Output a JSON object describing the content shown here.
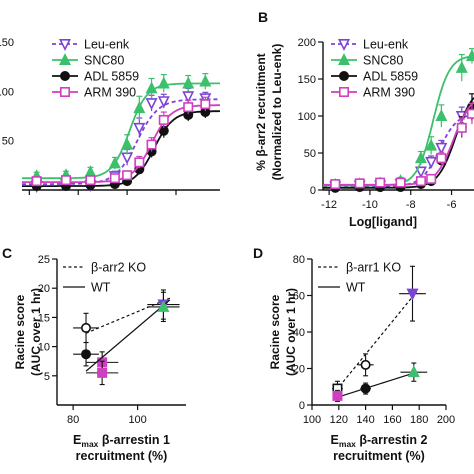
{
  "colors": {
    "leu_enk": "#7b44d6",
    "snc80": "#3cc06b",
    "adl5859": "#111111",
    "arm390": "#cf3fbf",
    "axis": "#111111"
  },
  "chart_data": [
    {
      "id": "A",
      "type": "line",
      "panel_letter": "",
      "xlabel": "",
      "ylabel": "",
      "xlim": [
        -12.3,
        -4.2
      ],
      "ylim": [
        0,
        150
      ],
      "xticks": [],
      "yticks": [
        "150",
        "100",
        "50"
      ],
      "x_minor_ticks": [
        -12,
        -10,
        -8,
        -6
      ],
      "legend": [
        "Leu-enk",
        "SNC80",
        "ADL 5859",
        "ARM 390"
      ],
      "legend_placement": "top-left",
      "series": [
        {
          "name": "Leu-enk",
          "color": "leu_enk",
          "marker": "triangle-down-open",
          "dashed": true,
          "bottom": 6,
          "top": 92,
          "ec50": -7.6,
          "hill": 1.0,
          "points": [
            [
              -11.7,
              4
            ],
            [
              -10.5,
              6
            ],
            [
              -9.5,
              5
            ],
            [
              -8.5,
              14
            ],
            [
              -8,
              33
            ],
            [
              -7.5,
              63
            ],
            [
              -7,
              88
            ],
            [
              -6.5,
              90
            ],
            [
              -5.5,
              95
            ],
            [
              -4.8,
              93
            ]
          ],
          "err": [
            3,
            3,
            3,
            5,
            8,
            10,
            8,
            7,
            8,
            6
          ]
        },
        {
          "name": "SNC80",
          "color": "snc80",
          "marker": "triangle-up",
          "dashed": false,
          "bottom": 12,
          "top": 108,
          "ec50": -7.9,
          "hill": 1.2,
          "points": [
            [
              -11.7,
              14
            ],
            [
              -10.5,
              15
            ],
            [
              -9.5,
              18
            ],
            [
              -8.5,
              27
            ],
            [
              -8,
              46
            ],
            [
              -7.5,
              83
            ],
            [
              -7,
              103
            ],
            [
              -6.5,
              108
            ],
            [
              -5.5,
              108
            ],
            [
              -4.8,
              110
            ]
          ],
          "err": [
            4,
            4,
            5,
            6,
            10,
            12,
            10,
            9,
            8,
            8
          ]
        },
        {
          "name": "ADL 5859",
          "color": "adl5859",
          "marker": "circle",
          "dashed": false,
          "bottom": 4,
          "top": 80,
          "ec50": -6.9,
          "hill": 1.1,
          "points": [
            [
              -11.7,
              4
            ],
            [
              -10.5,
              4
            ],
            [
              -9.5,
              5
            ],
            [
              -8.5,
              6
            ],
            [
              -8,
              9
            ],
            [
              -7.5,
              21
            ],
            [
              -7,
              39
            ],
            [
              -6.5,
              60
            ],
            [
              -5.5,
              76
            ],
            [
              -4.8,
              79
            ]
          ],
          "err": [
            2,
            2,
            2,
            3,
            3,
            5,
            6,
            7,
            6,
            6
          ]
        },
        {
          "name": "ARM 390",
          "color": "arm390",
          "marker": "square-open",
          "dashed": false,
          "bottom": 8,
          "top": 86,
          "ec50": -7.0,
          "hill": 1.1,
          "points": [
            [
              -11.7,
              9
            ],
            [
              -10.5,
              10
            ],
            [
              -9.5,
              10
            ],
            [
              -8.5,
              12
            ],
            [
              -8,
              15
            ],
            [
              -7.5,
              28
            ],
            [
              -7,
              46
            ],
            [
              -6.5,
              71
            ],
            [
              -5.5,
              84
            ],
            [
              -4.8,
              87
            ]
          ],
          "err": [
            3,
            3,
            3,
            3,
            4,
            6,
            7,
            8,
            7,
            7
          ]
        }
      ]
    },
    {
      "id": "B",
      "type": "line",
      "panel_letter": "B",
      "xlabel": "Log[ligand]",
      "ylabel": "% β-arr2 recruitment",
      "ylabel2": "(Normalized to Leu-enk)",
      "xlim": [
        -12.3,
        -4.9
      ],
      "ylim": [
        0,
        200
      ],
      "xticks": [
        "-12",
        "-10",
        "-8",
        "-6"
      ],
      "yticks": [
        "200",
        "150",
        "100",
        "50",
        "0"
      ],
      "legend": [
        "Leu-enk",
        "SNC80",
        "ADL 5859",
        "ARM 390"
      ],
      "legend_placement": "top-left",
      "series": [
        {
          "name": "Leu-enk",
          "color": "leu_enk",
          "marker": "triangle-down-open",
          "dashed": true,
          "bottom": 5,
          "top": 104,
          "ec50": -6.6,
          "hill": 1.0,
          "points": [
            [
              -11.7,
              5
            ],
            [
              -10.5,
              6
            ],
            [
              -9.5,
              6
            ],
            [
              -8.5,
              8
            ],
            [
              -7.5,
              25
            ],
            [
              -7,
              38
            ],
            [
              -6.5,
              57
            ],
            [
              -5.5,
              100
            ],
            [
              -5,
              103
            ]
          ],
          "err": [
            3,
            3,
            3,
            4,
            6,
            8,
            10,
            12,
            10
          ]
        },
        {
          "name": "SNC80",
          "color": "snc80",
          "marker": "triangle-up",
          "dashed": false,
          "bottom": 6,
          "top": 182,
          "ec50": -6.9,
          "hill": 1.1,
          "points": [
            [
              -11.7,
              7
            ],
            [
              -10.5,
              8
            ],
            [
              -9.5,
              9
            ],
            [
              -8.5,
              12
            ],
            [
              -7.5,
              43
            ],
            [
              -7,
              60
            ],
            [
              -6.5,
              100
            ],
            [
              -5.5,
              165
            ],
            [
              -5,
              181
            ]
          ],
          "err": [
            3,
            3,
            4,
            5,
            9,
            12,
            15,
            18,
            10
          ]
        },
        {
          "name": "ADL 5859",
          "color": "adl5859",
          "marker": "circle",
          "dashed": false,
          "bottom": 3,
          "top": 140,
          "ec50": -5.8,
          "hill": 1.0,
          "points": [
            [
              -11.7,
              3
            ],
            [
              -10.5,
              4
            ],
            [
              -9.5,
              4
            ],
            [
              -8.5,
              4
            ],
            [
              -7.5,
              8
            ],
            [
              -7,
              12
            ],
            [
              -6.5,
              40
            ],
            [
              -5.5,
              85
            ],
            [
              -5,
              112
            ]
          ],
          "err": [
            2,
            2,
            2,
            2,
            3,
            4,
            8,
            14,
            18
          ]
        },
        {
          "name": "ARM 390",
          "color": "arm390",
          "marker": "square-open",
          "dashed": false,
          "bottom": 7,
          "top": 130,
          "ec50": -5.9,
          "hill": 1.0,
          "points": [
            [
              -11.7,
              8
            ],
            [
              -10.5,
              9
            ],
            [
              -9.5,
              10
            ],
            [
              -8.5,
              10
            ],
            [
              -7.5,
              12
            ],
            [
              -7,
              15
            ],
            [
              -6.5,
              43
            ],
            [
              -5.5,
              84
            ],
            [
              -5,
              103
            ]
          ],
          "err": [
            3,
            3,
            3,
            3,
            4,
            5,
            8,
            12,
            14
          ]
        }
      ]
    },
    {
      "id": "C",
      "type": "scatter",
      "panel_letter": "C",
      "xlabel": "E",
      "xlabel_sub": "max",
      "xlabel_rest": " β-arrestin 1",
      "xlabel2": "recruitment (%)",
      "ylabel": "Racine score",
      "ylabel2": "(AUC over 1 hr)",
      "xlim": [
        75,
        115
      ],
      "ylim": [
        0,
        25
      ],
      "xticks": [
        "80",
        "100"
      ],
      "yticks": [
        "25",
        "20",
        "15",
        "10",
        "5"
      ],
      "legend": [
        "β-arr2 KO",
        "WT"
      ],
      "legend_placement": "top-left",
      "series": [
        {
          "name": "β-arr2 KO",
          "dashed": true,
          "fit": [
            [
              84,
              12.3
            ],
            [
              110,
              18.3
            ]
          ],
          "points": [
            {
              "x": 84,
              "y": 13.2,
              "xerr": 4,
              "yerr": 2.5,
              "marker": "circle-open",
              "color": "adl5859"
            },
            {
              "x": 89,
              "y": 7.3,
              "xerr": 5,
              "yerr": 1.8,
              "marker": "square",
              "color": "arm390"
            },
            {
              "x": 108,
              "y": 17.2,
              "xerr": 5,
              "yerr": 2.5,
              "marker": "triangle-down",
              "color": "leu_enk"
            }
          ]
        },
        {
          "name": "WT",
          "dashed": false,
          "fit": [
            [
              84,
              5.8
            ],
            [
              110,
              18.0
            ]
          ],
          "points": [
            {
              "x": 84,
              "y": 8.7,
              "xerr": 4,
              "yerr": 2,
              "marker": "circle",
              "color": "adl5859"
            },
            {
              "x": 89,
              "y": 5.5,
              "xerr": 5,
              "yerr": 2,
              "marker": "square",
              "color": "arm390"
            },
            {
              "x": 108,
              "y": 16.8,
              "xerr": 5,
              "yerr": 2.5,
              "marker": "triangle-up",
              "color": "snc80"
            }
          ]
        }
      ]
    },
    {
      "id": "D",
      "type": "scatter",
      "panel_letter": "D",
      "xlabel": "E",
      "xlabel_sub": "max",
      "xlabel_rest": " β-arrestin 2",
      "xlabel2": "recruitment (%)",
      "ylabel": "Racine score",
      "ylabel2": "(AUC over 1 hr)",
      "xlim": [
        100,
        200
      ],
      "ylim": [
        0,
        80
      ],
      "xticks": [
        "100",
        "120",
        "140",
        "160",
        "180",
        "200"
      ],
      "yticks": [
        "80",
        "60",
        "40",
        "20",
        "0"
      ],
      "legend": [
        "β-arr1 KO",
        "WT"
      ],
      "legend_placement": "top-left",
      "series": [
        {
          "name": "β-arr1 KO",
          "dashed": true,
          "fit": [
            [
              118,
              8
            ],
            [
              178,
              62
            ]
          ],
          "points": [
            {
              "x": 119,
              "y": 9,
              "xerr": 4,
              "yerr": 4,
              "marker": "square-open",
              "color": "arm390"
            },
            {
              "x": 140,
              "y": 22,
              "xerr": 6,
              "yerr": 6,
              "marker": "circle-open",
              "color": "adl5859"
            },
            {
              "x": 175,
              "y": 61,
              "xerr": 10,
              "yerr": 15,
              "marker": "triangle-down",
              "color": "leu_enk"
            }
          ]
        },
        {
          "name": "WT",
          "dashed": false,
          "fit": [
            [
              118,
              4
            ],
            [
              178,
              18
            ]
          ],
          "points": [
            {
              "x": 119,
              "y": 5,
              "xerr": 3,
              "yerr": 3,
              "marker": "square",
              "color": "arm390"
            },
            {
              "x": 140,
              "y": 9,
              "xerr": 4,
              "yerr": 3,
              "marker": "circle",
              "color": "adl5859"
            },
            {
              "x": 176,
              "y": 18,
              "xerr": 10,
              "yerr": 5,
              "marker": "triangle-up",
              "color": "snc80"
            }
          ]
        }
      ]
    }
  ]
}
